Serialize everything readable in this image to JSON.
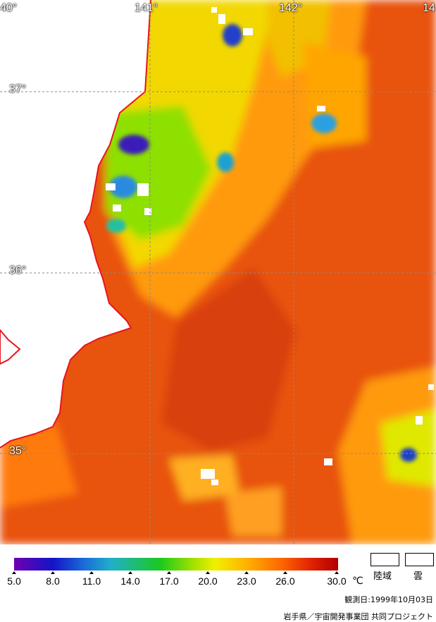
{
  "map": {
    "lon_labels": [
      "40°",
      "141°",
      "142°",
      "14"
    ],
    "lat_labels": [
      "37°",
      "36°",
      "35°"
    ]
  },
  "legend": {
    "ticks": [
      "5.0",
      "8.0",
      "11.0",
      "14.0",
      "17.0",
      "20.0",
      "23.0",
      "26.0",
      "30.0"
    ],
    "unit": "℃",
    "land_label": "陸域",
    "cloud_label": "雲"
  },
  "footer": {
    "observation": "観測日:1999年10月03日",
    "credit": "岩手県／宇宙開発事業団  共同プロジェクト"
  }
}
